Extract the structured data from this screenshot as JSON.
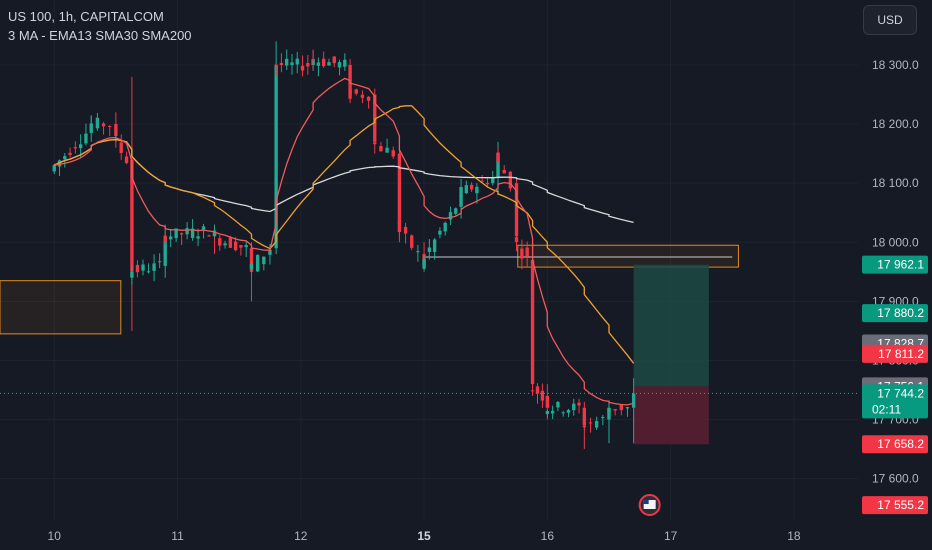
{
  "header": {
    "title": "US 100, 1h, CAPITALCOM",
    "subtitle": "3 MA - EMA13 SMA30 SMA200",
    "currency_button": "USD"
  },
  "colors": {
    "background": "#161a25",
    "up": "#22ab94",
    "down": "#f23645",
    "ema13": "#f05a5a",
    "sma30": "#f0a030",
    "sma200": "#d9d9d9",
    "zone_border": "#e08a1e",
    "target_zone": "#1d4a45",
    "stop_zone": "#5a2030",
    "badge_green": "#089981",
    "badge_red": "#f23645",
    "badge_gray": "#6a6d78"
  },
  "chart_data": {
    "type": "candlestick",
    "title": "US 100, 1h, CAPITALCOM",
    "indicators": [
      "EMA13",
      "SMA30",
      "SMA200"
    ],
    "x_tick_labels": [
      "10",
      "11",
      "12",
      "15",
      "16",
      "17",
      "18"
    ],
    "x_ticks": [
      {
        "label": "10",
        "day": 0,
        "bold": false
      },
      {
        "label": "11",
        "day": 1,
        "bold": false
      },
      {
        "label": "12",
        "day": 2,
        "bold": false
      },
      {
        "label": "15",
        "day": 3,
        "bold": true
      },
      {
        "label": "16",
        "day": 4,
        "bold": false
      },
      {
        "label": "17",
        "day": 5,
        "bold": false
      },
      {
        "label": "18",
        "day": 6,
        "bold": false
      }
    ],
    "y_ticks": [
      18300,
      18200,
      18100,
      18000,
      17900,
      17800,
      17700,
      17600
    ],
    "y_tick_labels": [
      "18 300.0",
      "18 200.0",
      "18 100.0",
      "18 000.0",
      "17 900.0",
      "17 800.0",
      "17 700.0",
      "17 600.0"
    ],
    "ylim": [
      17530,
      18410
    ],
    "xlim": [
      -0.44,
      6.52
    ],
    "price_badges": [
      {
        "label": "17 962.1",
        "value": 17962.1,
        "color": "#089981"
      },
      {
        "label": "17 880.2",
        "value": 17880.2,
        "color": "#089981"
      },
      {
        "label": "17 828.7",
        "value": 17828.7,
        "color": "#6a6d78"
      },
      {
        "label": "17 811.2",
        "value": 17811.2,
        "color": "#f23645"
      },
      {
        "label": "17 756.1",
        "value": 17756.1,
        "color": "#6a6d78"
      },
      {
        "label": "17 744.2",
        "value": 17744.2,
        "color": "#089981",
        "countdown": "02:11"
      },
      {
        "label": "17 658.2",
        "value": 17658.2,
        "color": "#f23645"
      },
      {
        "label": "17 555.2",
        "value": 17555.2,
        "color": "#f23645"
      }
    ],
    "current_price": 17744.2,
    "countdown": "02:11",
    "horizontal_line": {
      "value": 17975,
      "x_start": 3.0,
      "x_end": 5.5
    },
    "zones": [
      {
        "kind": "supply",
        "x_start": -0.44,
        "x_end": 0.54,
        "y_top": 17935,
        "y_bottom": 17845
      },
      {
        "kind": "supply",
        "x_start": 3.76,
        "x_end": 5.55,
        "y_top": 17995,
        "y_bottom": 17958
      }
    ],
    "position": {
      "x_start": 4.7,
      "x_end": 5.31,
      "entry": 17756.1,
      "target": 17962.1,
      "stop": 17658.2
    },
    "candles_sampled": [
      {
        "day": 0.0,
        "o": 18150,
        "c": 18120,
        "h": 18175,
        "l": 17960
      },
      {
        "day": 0.3,
        "o": 18185,
        "c": 18200,
        "h": 18215,
        "l": 18170
      },
      {
        "day": 0.5,
        "o": 18200,
        "c": 18180,
        "h": 18220,
        "l": 18160
      },
      {
        "day": 0.63,
        "o": 18140,
        "c": 17950,
        "h": 18280,
        "l": 17850
      },
      {
        "day": 0.9,
        "o": 17960,
        "c": 18010,
        "h": 18030,
        "l": 17940
      },
      {
        "day": 1.3,
        "o": 18020,
        "c": 18010,
        "h": 18030,
        "l": 17980
      },
      {
        "day": 1.6,
        "o": 17990,
        "c": 17950,
        "h": 18000,
        "l": 17900
      },
      {
        "day": 1.8,
        "o": 17990,
        "c": 18300,
        "h": 18340,
        "l": 17980
      },
      {
        "day": 2.1,
        "o": 18300,
        "c": 18310,
        "h": 18325,
        "l": 18290
      },
      {
        "day": 2.4,
        "o": 18300,
        "c": 18250,
        "h": 18310,
        "l": 18240
      },
      {
        "day": 2.6,
        "o": 18250,
        "c": 18170,
        "h": 18260,
        "l": 18150
      },
      {
        "day": 2.8,
        "o": 18150,
        "c": 18030,
        "h": 18160,
        "l": 18000
      },
      {
        "day": 3.0,
        "o": 17980,
        "c": 17960,
        "h": 18000,
        "l": 17950
      },
      {
        "day": 3.3,
        "o": 18060,
        "c": 18080,
        "h": 18090,
        "l": 18040
      },
      {
        "day": 3.6,
        "o": 18110,
        "c": 18150,
        "h": 18170,
        "l": 18080
      },
      {
        "day": 3.75,
        "o": 18100,
        "c": 18010,
        "h": 18110,
        "l": 17990
      },
      {
        "day": 3.88,
        "o": 17970,
        "c": 17760,
        "h": 17990,
        "l": 17740
      },
      {
        "day": 4.0,
        "o": 17740,
        "c": 17720,
        "h": 17760,
        "l": 17700
      },
      {
        "day": 4.3,
        "o": 17720,
        "c": 17690,
        "h": 17730,
        "l": 17650
      },
      {
        "day": 4.5,
        "o": 17700,
        "c": 17720,
        "h": 17730,
        "l": 17660
      },
      {
        "day": 4.7,
        "o": 17720,
        "c": 17744,
        "h": 17770,
        "l": 17660
      }
    ]
  }
}
